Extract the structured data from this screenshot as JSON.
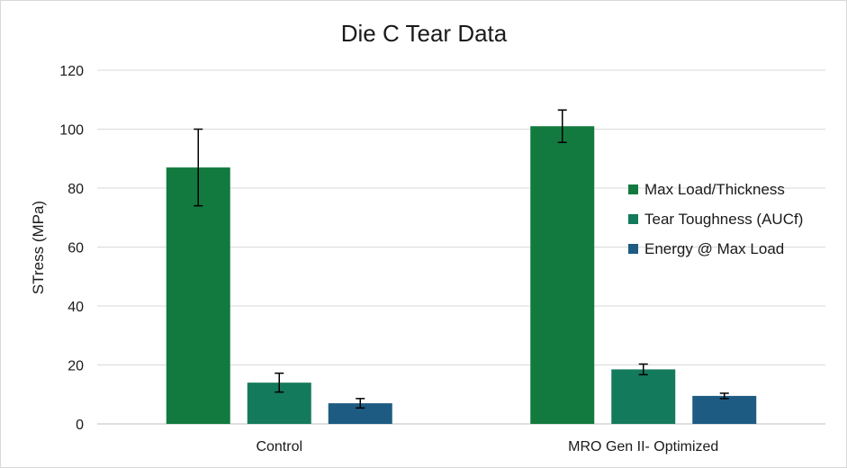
{
  "chart_data": {
    "type": "bar",
    "title": "Die C Tear Data",
    "xlabel": "",
    "ylabel": "STress (MPa)",
    "ylim": [
      0,
      120
    ],
    "yticks": [
      0,
      20,
      40,
      60,
      80,
      100,
      120
    ],
    "grid": true,
    "legend_position": "right",
    "categories": [
      "Control",
      "MRO Gen II- Optimized"
    ],
    "series": [
      {
        "name": "Max Load/Thickness",
        "color": "#137a3f",
        "values": [
          87,
          101
        ],
        "errors": [
          13,
          5.5
        ]
      },
      {
        "name": "Tear Toughness (AUCf)",
        "color": "#147a5c",
        "values": [
          14,
          18.5
        ],
        "errors": [
          3.2,
          1.8
        ]
      },
      {
        "name": "Energy @ Max Load",
        "color": "#1d5b82",
        "values": [
          7,
          9.5
        ],
        "errors": [
          1.6,
          0.9
        ]
      }
    ]
  }
}
